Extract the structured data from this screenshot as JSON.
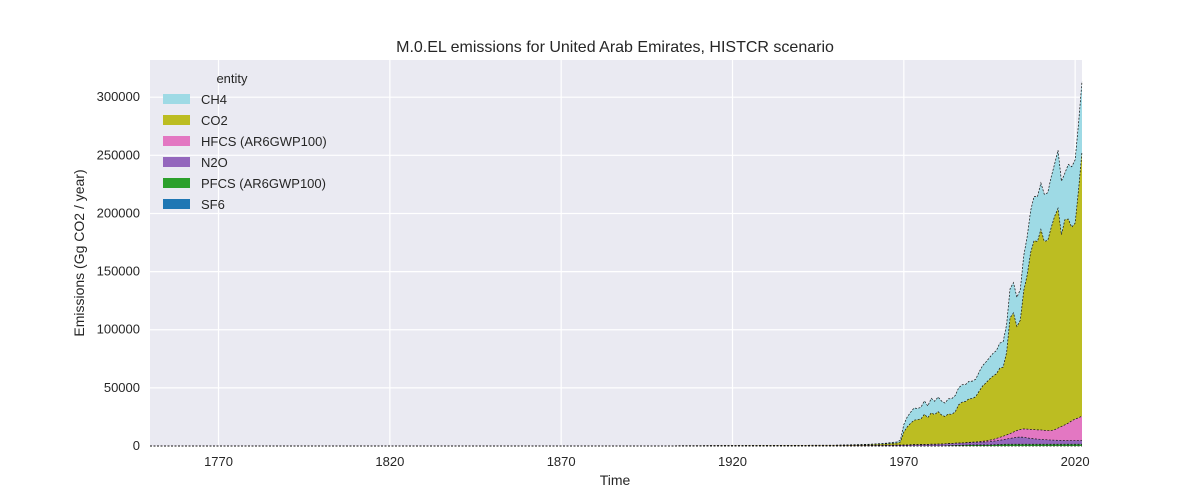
{
  "chart_data": {
    "type": "area",
    "stacked": true,
    "title": "M.0.EL emissions for United Arab Emirates, HISTCR scenario",
    "xlabel": "Time",
    "ylabel": "Emissions (Gg CO2 / year)",
    "xlim": [
      1750,
      2022
    ],
    "ylim": [
      0,
      332000
    ],
    "xticks": [
      1770,
      1820,
      1870,
      1920,
      1970,
      2020
    ],
    "yticks": [
      0,
      50000,
      100000,
      150000,
      200000,
      250000,
      300000
    ],
    "grid": true,
    "legend": {
      "title": "entity",
      "placement": "top-left"
    },
    "colors": {
      "SF6": "#1f77b4",
      "PFCS (AR6GWP100)": "#2ca02c",
      "N2O": "#9467bd",
      "HFCS (AR6GWP100)": "#e377c2",
      "CO2": "#bcbd22",
      "CH4": "#9edae5"
    },
    "x": [
      1750,
      1900,
      1950,
      1960,
      1965,
      1968,
      1969,
      1970,
      1971,
      1972,
      1973,
      1974,
      1975,
      1976,
      1977,
      1978,
      1979,
      1980,
      1981,
      1982,
      1983,
      1984,
      1985,
      1986,
      1987,
      1988,
      1989,
      1990,
      1991,
      1992,
      1993,
      1994,
      1995,
      1996,
      1997,
      1998,
      1999,
      2000,
      2001,
      2002,
      2003,
      2004,
      2005,
      2006,
      2007,
      2008,
      2009,
      2010,
      2011,
      2012,
      2013,
      2014,
      2015,
      2016,
      2017,
      2018,
      2019,
      2020,
      2021,
      2022
    ],
    "series": [
      {
        "name": "SF6",
        "values": [
          0,
          0,
          0,
          0,
          0,
          0,
          0,
          0,
          0,
          0,
          0,
          0,
          0,
          0,
          0,
          0,
          0,
          0,
          0,
          0,
          0,
          0,
          0,
          0,
          0,
          0,
          0,
          0,
          0,
          0,
          0,
          0,
          0,
          0,
          0,
          0,
          0,
          0,
          0,
          0,
          0,
          0,
          0,
          0,
          0,
          0,
          0,
          0,
          0,
          0,
          0,
          0,
          0,
          0,
          0,
          0,
          0,
          0,
          0,
          0
        ]
      },
      {
        "name": "PFCS (AR6GWP100)",
        "values": [
          0,
          0,
          0,
          0,
          0,
          0,
          0,
          0,
          0,
          0,
          0,
          0,
          0,
          0,
          0,
          0,
          0,
          0,
          0,
          200,
          300,
          400,
          500,
          600,
          700,
          800,
          900,
          1000,
          1000,
          1000,
          1000,
          1000,
          1000,
          1100,
          1200,
          1300,
          1400,
          1500,
          1500,
          1500,
          1500,
          1500,
          1500,
          1500,
          1500,
          1500,
          1500,
          1500,
          1500,
          1500,
          1500,
          1500,
          1500,
          1500,
          1500,
          1500,
          1500,
          1500,
          1500,
          1500
        ]
      },
      {
        "name": "N2O",
        "values": [
          100,
          150,
          300,
          500,
          700,
          800,
          900,
          1000,
          1000,
          1100,
          1200,
          1200,
          1300,
          1300,
          1400,
          1500,
          1500,
          1600,
          1700,
          1700,
          1800,
          1800,
          1900,
          1900,
          2000,
          2000,
          2100,
          2100,
          2200,
          2300,
          2400,
          2500,
          2800,
          3000,
          3300,
          3600,
          4000,
          4500,
          5000,
          5500,
          6000,
          6200,
          6000,
          5500,
          5000,
          4700,
          4400,
          4200,
          4000,
          3800,
          3600,
          3500,
          3400,
          3300,
          3200,
          3200,
          3200,
          3200,
          3200,
          3200
        ]
      },
      {
        "name": "HFCS (AR6GWP100)",
        "values": [
          0,
          0,
          0,
          0,
          0,
          0,
          0,
          0,
          0,
          0,
          0,
          0,
          0,
          0,
          0,
          0,
          0,
          0,
          0,
          0,
          0,
          0,
          0,
          0,
          0,
          0,
          100,
          200,
          300,
          500,
          700,
          900,
          1200,
          1500,
          2000,
          2500,
          3000,
          3500,
          4200,
          5000,
          5800,
          6500,
          7200,
          7500,
          7800,
          7900,
          8000,
          8100,
          8000,
          8000,
          8200,
          9000,
          10500,
          12000,
          13500,
          15000,
          17000,
          18500,
          19500,
          21000
        ]
      },
      {
        "name": "CO2",
        "values": [
          0,
          0,
          300,
          700,
          1200,
          1800,
          2600,
          11000,
          15500,
          18500,
          21000,
          21500,
          22000,
          26000,
          23000,
          27000,
          25500,
          28000,
          25000,
          23500,
          25500,
          25000,
          27000,
          33000,
          35000,
          35500,
          37500,
          37500,
          39000,
          43500,
          47500,
          50000,
          52500,
          54500,
          55500,
          59500,
          59500,
          71000,
          99500,
          102500,
          89500,
          94000,
          119000,
          132500,
          152000,
          162500,
          162000,
          172500,
          162500,
          163500,
          174500,
          183500,
          189000,
          165000,
          176500,
          175500,
          166500,
          168500,
          196500,
          227500
        ]
      },
      {
        "name": "CH4",
        "values": [
          0,
          0,
          100,
          300,
          600,
          900,
          1500,
          6500,
          8500,
          9500,
          10500,
          9500,
          10000,
          11500,
          10000,
          12500,
          11500,
          12500,
          12000,
          11500,
          13000,
          13500,
          14000,
          14500,
          15000,
          14500,
          15000,
          15000,
          15000,
          16500,
          17500,
          18000,
          18500,
          19500,
          20000,
          21500,
          22000,
          24000,
          25000,
          26000,
          25000,
          26500,
          30000,
          33000,
          36000,
          38000,
          38500,
          40000,
          40500,
          41000,
          43500,
          45000,
          50000,
          46000,
          40000,
          47000,
          52000,
          54500,
          57000,
          60500
        ]
      }
    ]
  }
}
